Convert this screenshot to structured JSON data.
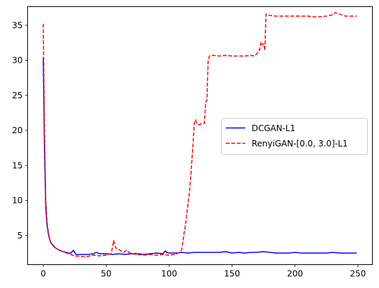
{
  "chart_data": {
    "type": "line",
    "title": "",
    "xlabel": "",
    "ylabel": "",
    "xlim": [
      -12.45,
      261.45
    ],
    "ylim": [
      0.85,
      37.65
    ],
    "xticks": [
      0,
      50,
      100,
      150,
      200,
      250
    ],
    "yticks": [
      5,
      10,
      15,
      20,
      25,
      30,
      35
    ],
    "xtick_labels": [
      "0",
      "50",
      "100",
      "150",
      "200",
      "250"
    ],
    "ytick_labels": [
      "5",
      "10",
      "15",
      "20",
      "25",
      "30",
      "35"
    ],
    "grid": false,
    "legend_position": "center-right",
    "series": [
      {
        "name": "DCGAN-L1",
        "color": "#0000ff",
        "style": "solid",
        "x": [
          0,
          1,
          2,
          3,
          4,
          5,
          6,
          8,
          10,
          13,
          16,
          20,
          22,
          24,
          26,
          28,
          32,
          36,
          40,
          42,
          45,
          50,
          55,
          60,
          65,
          70,
          75,
          80,
          85,
          90,
          95,
          97,
          98,
          100,
          105,
          110,
          115,
          120,
          125,
          130,
          135,
          140,
          145,
          150,
          155,
          160,
          165,
          170,
          175,
          180,
          185,
          190,
          195,
          200,
          205,
          210,
          215,
          220,
          225,
          230,
          235,
          240,
          245,
          249
        ],
        "y": [
          30.4,
          17.0,
          9.0,
          6.5,
          5.3,
          4.5,
          4.0,
          3.5,
          3.2,
          2.9,
          2.7,
          2.5,
          2.5,
          2.9,
          2.3,
          2.3,
          2.3,
          2.3,
          2.4,
          2.6,
          2.4,
          2.4,
          2.3,
          2.4,
          2.3,
          2.4,
          2.4,
          2.3,
          2.4,
          2.5,
          2.4,
          2.8,
          2.6,
          2.5,
          2.5,
          2.6,
          2.5,
          2.6,
          2.6,
          2.6,
          2.6,
          2.6,
          2.7,
          2.5,
          2.6,
          2.5,
          2.6,
          2.6,
          2.7,
          2.6,
          2.5,
          2.5,
          2.5,
          2.6,
          2.5,
          2.5,
          2.5,
          2.5,
          2.5,
          2.6,
          2.5,
          2.5,
          2.5,
          2.5
        ]
      },
      {
        "name": "RenyiGAN-[0.0, 3.0]-L1",
        "color": "#ff0000",
        "style": "dashed",
        "x": [
          0,
          1,
          2,
          3,
          4,
          5,
          6,
          8,
          10,
          13,
          16,
          20,
          25,
          30,
          35,
          40,
          45,
          50,
          54,
          56,
          57,
          58,
          60,
          62,
          64,
          66,
          68,
          70,
          75,
          80,
          85,
          90,
          95,
          100,
          105,
          108,
          110,
          111,
          112,
          113,
          114,
          115,
          116,
          117,
          118,
          119,
          120,
          121,
          122,
          124,
          126,
          128,
          129,
          130,
          131,
          132,
          135,
          140,
          145,
          150,
          155,
          160,
          165,
          168,
          170,
          172,
          173,
          174,
          175,
          176,
          177,
          178,
          180,
          185,
          190,
          195,
          200,
          205,
          210,
          215,
          220,
          225,
          230,
          232,
          235,
          240,
          245,
          249
        ],
        "y": [
          35.2,
          20.0,
          10.0,
          7.0,
          5.5,
          4.6,
          4.0,
          3.6,
          3.2,
          2.9,
          2.7,
          2.4,
          2.1,
          2.0,
          2.0,
          2.2,
          2.1,
          2.2,
          2.4,
          4.3,
          3.5,
          3.2,
          3.0,
          2.8,
          2.6,
          2.9,
          2.6,
          2.4,
          2.3,
          2.2,
          2.3,
          2.2,
          2.3,
          2.2,
          2.3,
          2.6,
          3.0,
          4.2,
          5.5,
          6.5,
          8.0,
          9.5,
          11.0,
          13.0,
          15.5,
          18.0,
          21.0,
          21.5,
          21.0,
          20.8,
          21.0,
          21.0,
          24.0,
          24.2,
          30.0,
          30.6,
          30.7,
          30.6,
          30.7,
          30.6,
          30.6,
          30.6,
          30.7,
          30.6,
          31.0,
          31.5,
          32.6,
          32.2,
          32.4,
          31.4,
          36.6,
          36.5,
          36.4,
          36.3,
          36.3,
          36.3,
          36.3,
          36.3,
          36.3,
          36.2,
          36.2,
          36.3,
          36.5,
          36.8,
          36.6,
          36.3,
          36.3,
          36.3
        ]
      }
    ]
  }
}
